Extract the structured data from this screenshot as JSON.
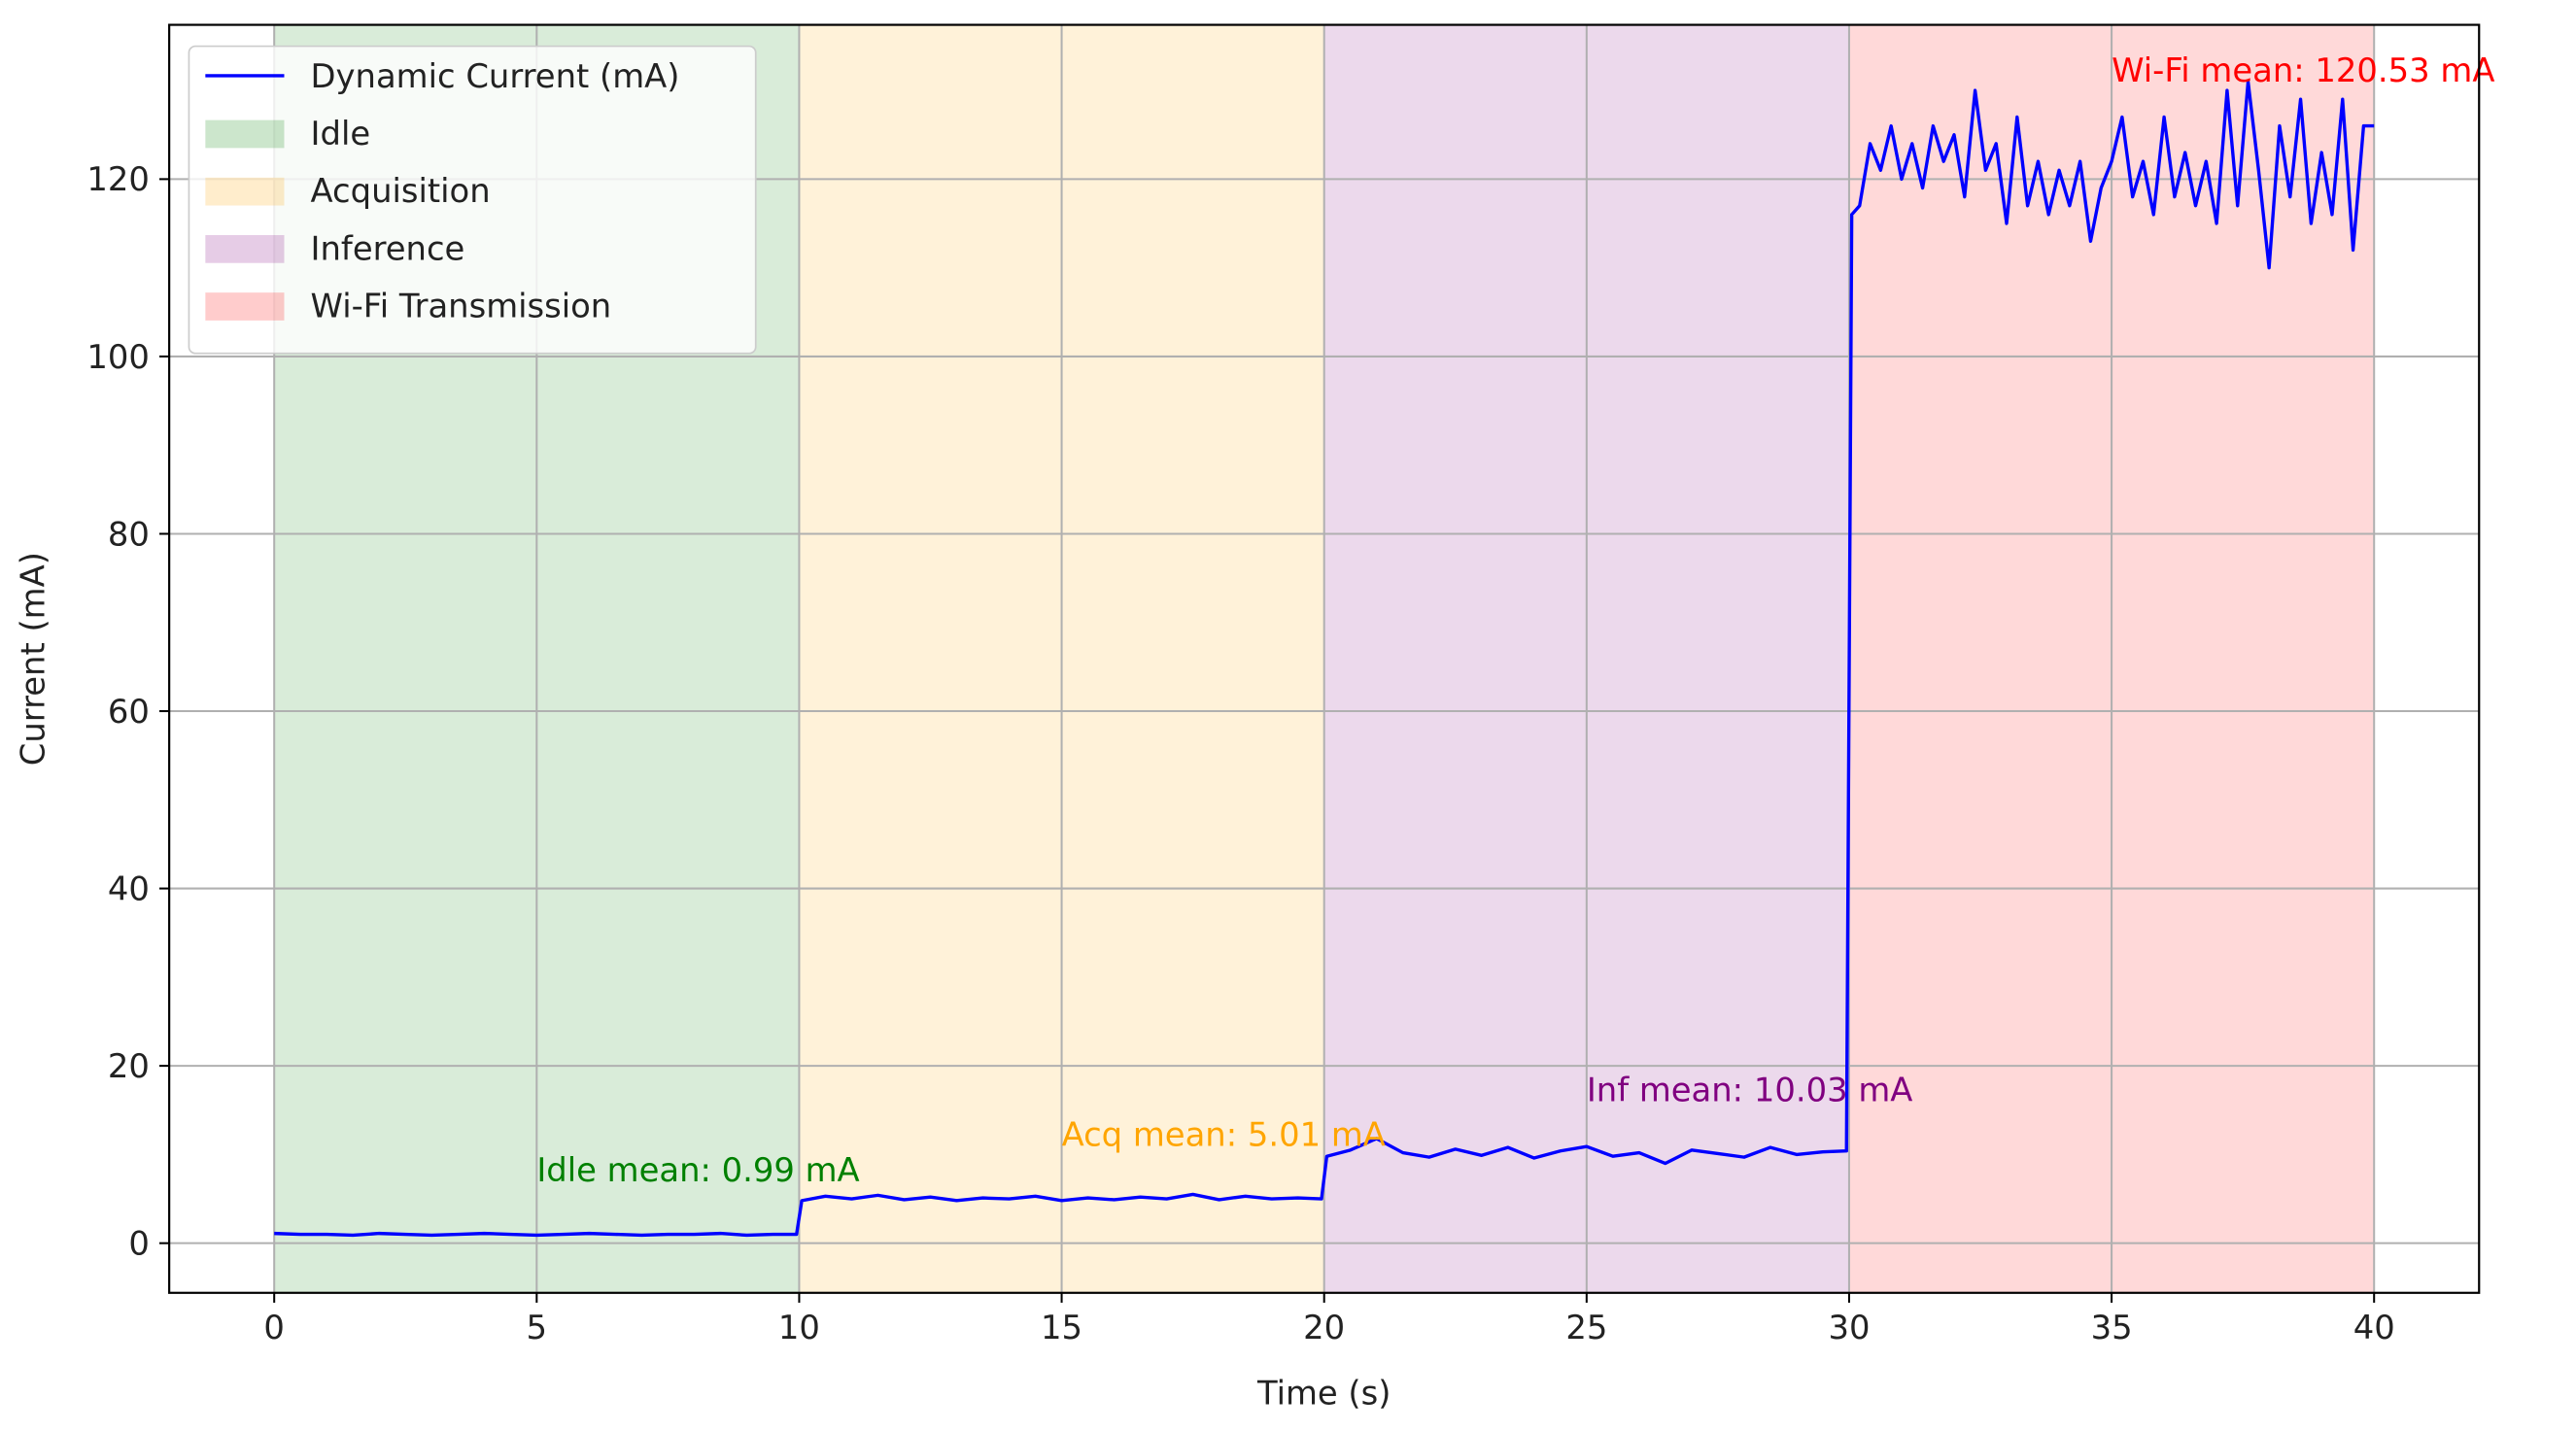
{
  "chart_data": {
    "type": "line",
    "x_label": "Time (s)",
    "y_label": "Current (mA)",
    "xlim": [
      -2,
      42
    ],
    "ylim": [
      -5.6,
      137.4
    ],
    "xticks": [
      0,
      5,
      10,
      15,
      20,
      25,
      30,
      35,
      40
    ],
    "yticks": [
      0,
      20,
      40,
      60,
      80,
      100,
      120
    ],
    "grid": true,
    "legend": "upper left",
    "x": [
      0,
      0.5,
      1,
      1.5,
      2,
      2.5,
      3,
      3.5,
      4,
      4.5,
      5,
      5.5,
      6,
      6.5,
      7,
      7.5,
      8,
      8.5,
      9,
      9.5,
      9.95,
      10.05,
      10.5,
      11,
      11.5,
      12,
      12.5,
      13,
      13.5,
      14,
      14.5,
      15,
      15.5,
      16,
      16.5,
      17,
      17.5,
      18,
      18.5,
      19,
      19.5,
      19.95,
      20.05,
      20.5,
      21,
      21.5,
      22,
      22.5,
      23,
      23.5,
      24,
      24.5,
      25,
      25.5,
      26,
      26.5,
      27,
      27.5,
      28,
      28.5,
      29,
      29.5,
      29.95,
      30.05,
      30.2,
      30.4,
      30.6,
      30.8,
      31,
      31.2,
      31.4,
      31.6,
      31.8,
      32,
      32.2,
      32.4,
      32.6,
      32.8,
      33,
      33.2,
      33.4,
      33.6,
      33.8,
      34,
      34.2,
      34.4,
      34.6,
      34.8,
      35,
      35.2,
      35.4,
      35.6,
      35.8,
      36,
      36.2,
      36.4,
      36.6,
      36.8,
      37,
      37.2,
      37.4,
      37.6,
      37.8,
      38,
      38.2,
      38.4,
      38.6,
      38.8,
      39,
      39.2,
      39.4,
      39.6,
      39.8,
      40
    ],
    "series": [
      {
        "name": "Dynamic Current (mA)",
        "color": "#0000ff",
        "values": [
          1.1,
          1.0,
          1.0,
          0.9,
          1.1,
          1.0,
          0.9,
          1.0,
          1.1,
          1.0,
          0.9,
          1.0,
          1.1,
          1.0,
          0.9,
          1.0,
          1.0,
          1.1,
          0.9,
          1.0,
          1.0,
          4.8,
          5.3,
          5.0,
          5.4,
          4.9,
          5.2,
          4.8,
          5.1,
          5.0,
          5.3,
          4.8,
          5.1,
          4.9,
          5.2,
          5.0,
          5.5,
          4.9,
          5.3,
          5.0,
          5.1,
          5.0,
          9.8,
          10.5,
          11.8,
          10.2,
          9.7,
          10.6,
          9.9,
          10.8,
          9.6,
          10.4,
          10.9,
          9.8,
          10.2,
          9.0,
          10.5,
          10.1,
          9.7,
          10.8,
          10.0,
          10.3,
          10.4,
          116,
          117,
          124,
          121,
          126,
          120,
          124,
          119,
          126,
          122,
          125,
          118,
          130,
          121,
          124,
          115,
          127,
          117,
          122,
          116,
          121,
          117,
          122,
          113,
          119,
          122,
          127,
          118,
          122,
          116,
          127,
          118,
          123,
          117,
          122,
          115,
          130,
          117,
          131,
          121,
          110,
          126,
          118,
          129,
          115,
          123,
          116,
          129,
          112,
          126,
          126
        ]
      }
    ],
    "spans": [
      {
        "name": "Idle",
        "color": "green",
        "range": [
          0,
          10
        ]
      },
      {
        "name": "Acquisition",
        "color": "orange",
        "range": [
          10,
          20
        ]
      },
      {
        "name": "Inference",
        "color": "purple",
        "range": [
          20,
          30
        ]
      },
      {
        "name": "Wi-Fi Transmission",
        "color": "red",
        "range": [
          30,
          40
        ]
      }
    ],
    "span_alpha": 0.15,
    "annotations": [
      {
        "text": "Idle mean: 0.99 mA",
        "x": 5,
        "y": 7,
        "color": "green"
      },
      {
        "text": "Acq mean: 5.01 mA",
        "x": 15,
        "y": 11,
        "color": "orange"
      },
      {
        "text": "Inf mean: 10.03 mA",
        "x": 25,
        "y": 16,
        "color": "purple"
      },
      {
        "text": "Wi-Fi mean: 120.53 mA",
        "x": 35,
        "y": 131,
        "color": "red"
      }
    ]
  }
}
